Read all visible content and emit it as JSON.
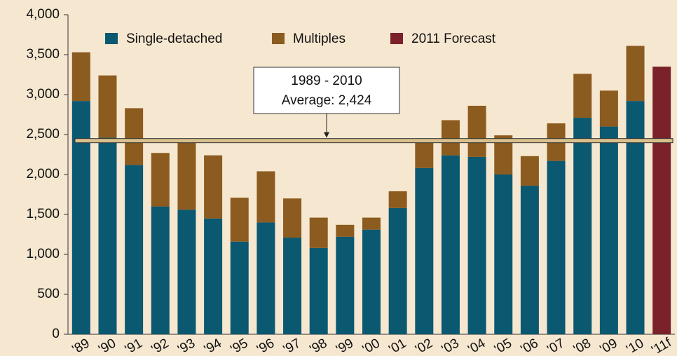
{
  "chart_data": {
    "type": "stacked_bar",
    "categories": [
      "'89",
      "'90",
      "'91",
      "'92",
      "'93",
      "'94",
      "'95",
      "'96",
      "'97",
      "'98",
      "'99",
      "'00",
      "'01",
      "'02",
      "'03",
      "'04",
      "'05",
      "'06",
      "'07",
      "'08",
      "'09",
      "'10",
      "'11f"
    ],
    "series": [
      {
        "name": "Single-detached",
        "color": "#0b5871",
        "values": [
          2920,
          2460,
          2120,
          1600,
          1560,
          1450,
          1160,
          1400,
          1210,
          1080,
          1220,
          1310,
          1580,
          2080,
          2240,
          2220,
          2000,
          1860,
          2170,
          2710,
          2600,
          2920,
          null
        ]
      },
      {
        "name": "Multiples",
        "color": "#8c5b1f",
        "values": [
          610,
          780,
          710,
          670,
          850,
          790,
          550,
          640,
          490,
          380,
          150,
          150,
          210,
          340,
          440,
          640,
          490,
          370,
          470,
          550,
          450,
          690,
          null
        ]
      },
      {
        "name": "2011 Forecast",
        "color": "#7b2129",
        "values": [
          null,
          null,
          null,
          null,
          null,
          null,
          null,
          null,
          null,
          null,
          null,
          null,
          null,
          null,
          null,
          null,
          null,
          null,
          null,
          null,
          null,
          null,
          3350
        ]
      }
    ],
    "average": {
      "value": 2424,
      "label": [
        "1989 - 2010",
        "Average: 2,424"
      ]
    },
    "ylim": [
      0,
      4000
    ],
    "yticks": [
      0,
      500,
      {
        "value": 1000,
        "label": "1,000"
      },
      {
        "value": 1500,
        "label": "1,500"
      },
      {
        "value": 2000,
        "label": "2,000"
      },
      {
        "value": 2500,
        "label": "2,500"
      },
      {
        "value": 3000,
        "label": "3,000"
      },
      {
        "value": 3500,
        "label": "3,500"
      },
      {
        "value": 4000,
        "label": "4,000"
      }
    ]
  }
}
